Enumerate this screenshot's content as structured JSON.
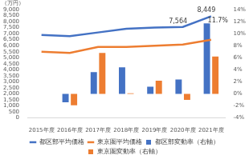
{
  "chart_data": {
    "type": "bar",
    "ylabel": "（万円）",
    "categories": [
      "2015年度",
      "2016年度",
      "2017年度",
      "2018年度",
      "2019年度",
      "2020年度",
      "2021年度"
    ],
    "series": [
      {
        "name": "都区部変動率（右軸）",
        "type": "bar",
        "axis": "y2",
        "color": "#4472c4",
        "values": [
          null,
          -1.4,
          3.6,
          4.4,
          1.2,
          2.4,
          11.7
        ],
        "value_labels": [
          null,
          null,
          null,
          null,
          null,
          null,
          "11.7%"
        ]
      },
      {
        "name": "東京圏変動率（右軸）",
        "type": "bar",
        "axis": "y2",
        "color": "#ed7d31",
        "values": [
          null,
          -1.9,
          6.8,
          0.1,
          2.2,
          -1.0,
          6.2
        ]
      },
      {
        "name": "都区部平均価格",
        "type": "line",
        "color": "#4472c4",
        "values": [
          6900,
          6800,
          7100,
          7400,
          7500,
          7564,
          8449
        ],
        "value_labels": [
          null,
          null,
          null,
          null,
          null,
          "7,564",
          "8,449"
        ]
      },
      {
        "name": "東京圏平均価格",
        "type": "line",
        "color": "#ed7d31",
        "values": [
          5500,
          5400,
          5900,
          5900,
          6000,
          6100,
          6500
        ]
      }
    ],
    "ylim": [
      0,
      9000
    ],
    "yticks": [
      0,
      {
        "value": 500,
        "label": "500"
      },
      {
        "value": 1000,
        "label": "1,000"
      },
      {
        "value": 1500,
        "label": "1,500"
      },
      {
        "value": 2000,
        "label": "2,000"
      },
      {
        "value": 2500,
        "label": "2,500"
      },
      {
        "value": 3000,
        "label": "3,000"
      },
      {
        "value": 3500,
        "label": "3,500"
      },
      {
        "value": 4000,
        "label": "4,000"
      },
      {
        "value": 4500,
        "label": "4,500"
      },
      {
        "value": 5000,
        "label": "5,000"
      },
      {
        "value": 5500,
        "label": "5,500"
      },
      {
        "value": 6000,
        "label": "6,000"
      },
      {
        "value": 6500,
        "label": "6,500"
      },
      {
        "value": 7000,
        "label": "7,000"
      },
      {
        "value": 7500,
        "label": "7,500"
      },
      {
        "value": 8000,
        "label": "8,000"
      },
      {
        "value": 8500,
        "label": "8,500"
      },
      {
        "value": 9000,
        "label": "9,000"
      }
    ],
    "y2lim": [
      -4,
      14
    ],
    "y2ticks": [
      {
        "value": -4,
        "label": "-4%"
      },
      {
        "value": -2,
        "label": "-2%"
      },
      {
        "value": 0,
        "label": "0%"
      },
      {
        "value": 2,
        "label": "2%"
      },
      {
        "value": 4,
        "label": "4%"
      },
      {
        "value": 6,
        "label": "6%"
      },
      {
        "value": 8,
        "label": "8%"
      },
      {
        "value": 10,
        "label": "10%"
      },
      {
        "value": 12,
        "label": "12%"
      },
      {
        "value": 14,
        "label": "14%"
      }
    ],
    "grid": false,
    "legend": "bottom",
    "data_labels": true
  }
}
